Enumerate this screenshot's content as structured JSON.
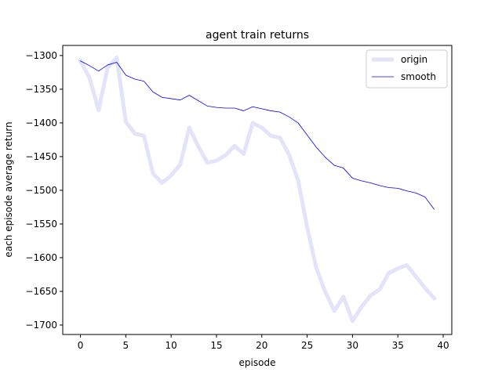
{
  "chart_data": {
    "type": "line",
    "title": "agent train returns",
    "xlabel": "episode",
    "ylabel": "each episode average return",
    "xlim": [
      -1.95,
      40.95
    ],
    "ylim": [
      -1714,
      -1285
    ],
    "xticks": [
      0,
      5,
      10,
      15,
      20,
      25,
      30,
      35,
      40
    ],
    "yticks": [
      -1300,
      -1350,
      -1400,
      -1450,
      -1500,
      -1550,
      -1600,
      -1650,
      -1700
    ],
    "grid": false,
    "legend_position": "top-right",
    "x": [
      0,
      1,
      2,
      3,
      4,
      5,
      6,
      7,
      8,
      9,
      10,
      11,
      12,
      13,
      14,
      15,
      16,
      17,
      18,
      19,
      20,
      21,
      22,
      23,
      24,
      25,
      26,
      27,
      28,
      29,
      30,
      31,
      32,
      33,
      34,
      35,
      36,
      37,
      38,
      39
    ],
    "series": [
      {
        "name": "origin",
        "color": "#e3e3fa",
        "values": [
          -1308,
          -1333,
          -1381,
          -1318,
          -1303,
          -1398,
          -1416,
          -1419,
          -1475,
          -1489,
          -1478,
          -1462,
          -1407,
          -1435,
          -1459,
          -1456,
          -1448,
          -1434,
          -1446,
          -1400,
          -1407,
          -1419,
          -1422,
          -1447,
          -1485,
          -1555,
          -1615,
          -1651,
          -1679,
          -1658,
          -1694,
          -1673,
          -1656,
          -1647,
          -1623,
          -1616,
          -1611,
          -1628,
          -1645,
          -1660
        ]
      },
      {
        "name": "smooth",
        "color": "#0000ff",
        "values": [
          -1308,
          -1315,
          -1323,
          -1314,
          -1310,
          -1329,
          -1335,
          -1338,
          -1354,
          -1362,
          -1364,
          -1366,
          -1359,
          -1367,
          -1375,
          -1377,
          -1378,
          -1378,
          -1382,
          -1376,
          -1379,
          -1382,
          -1384,
          -1391,
          -1400,
          -1418,
          -1436,
          -1451,
          -1463,
          -1467,
          -1482,
          -1486,
          -1489,
          -1493,
          -1496,
          -1497,
          -1501,
          -1504,
          -1510,
          -1528
        ]
      }
    ]
  }
}
